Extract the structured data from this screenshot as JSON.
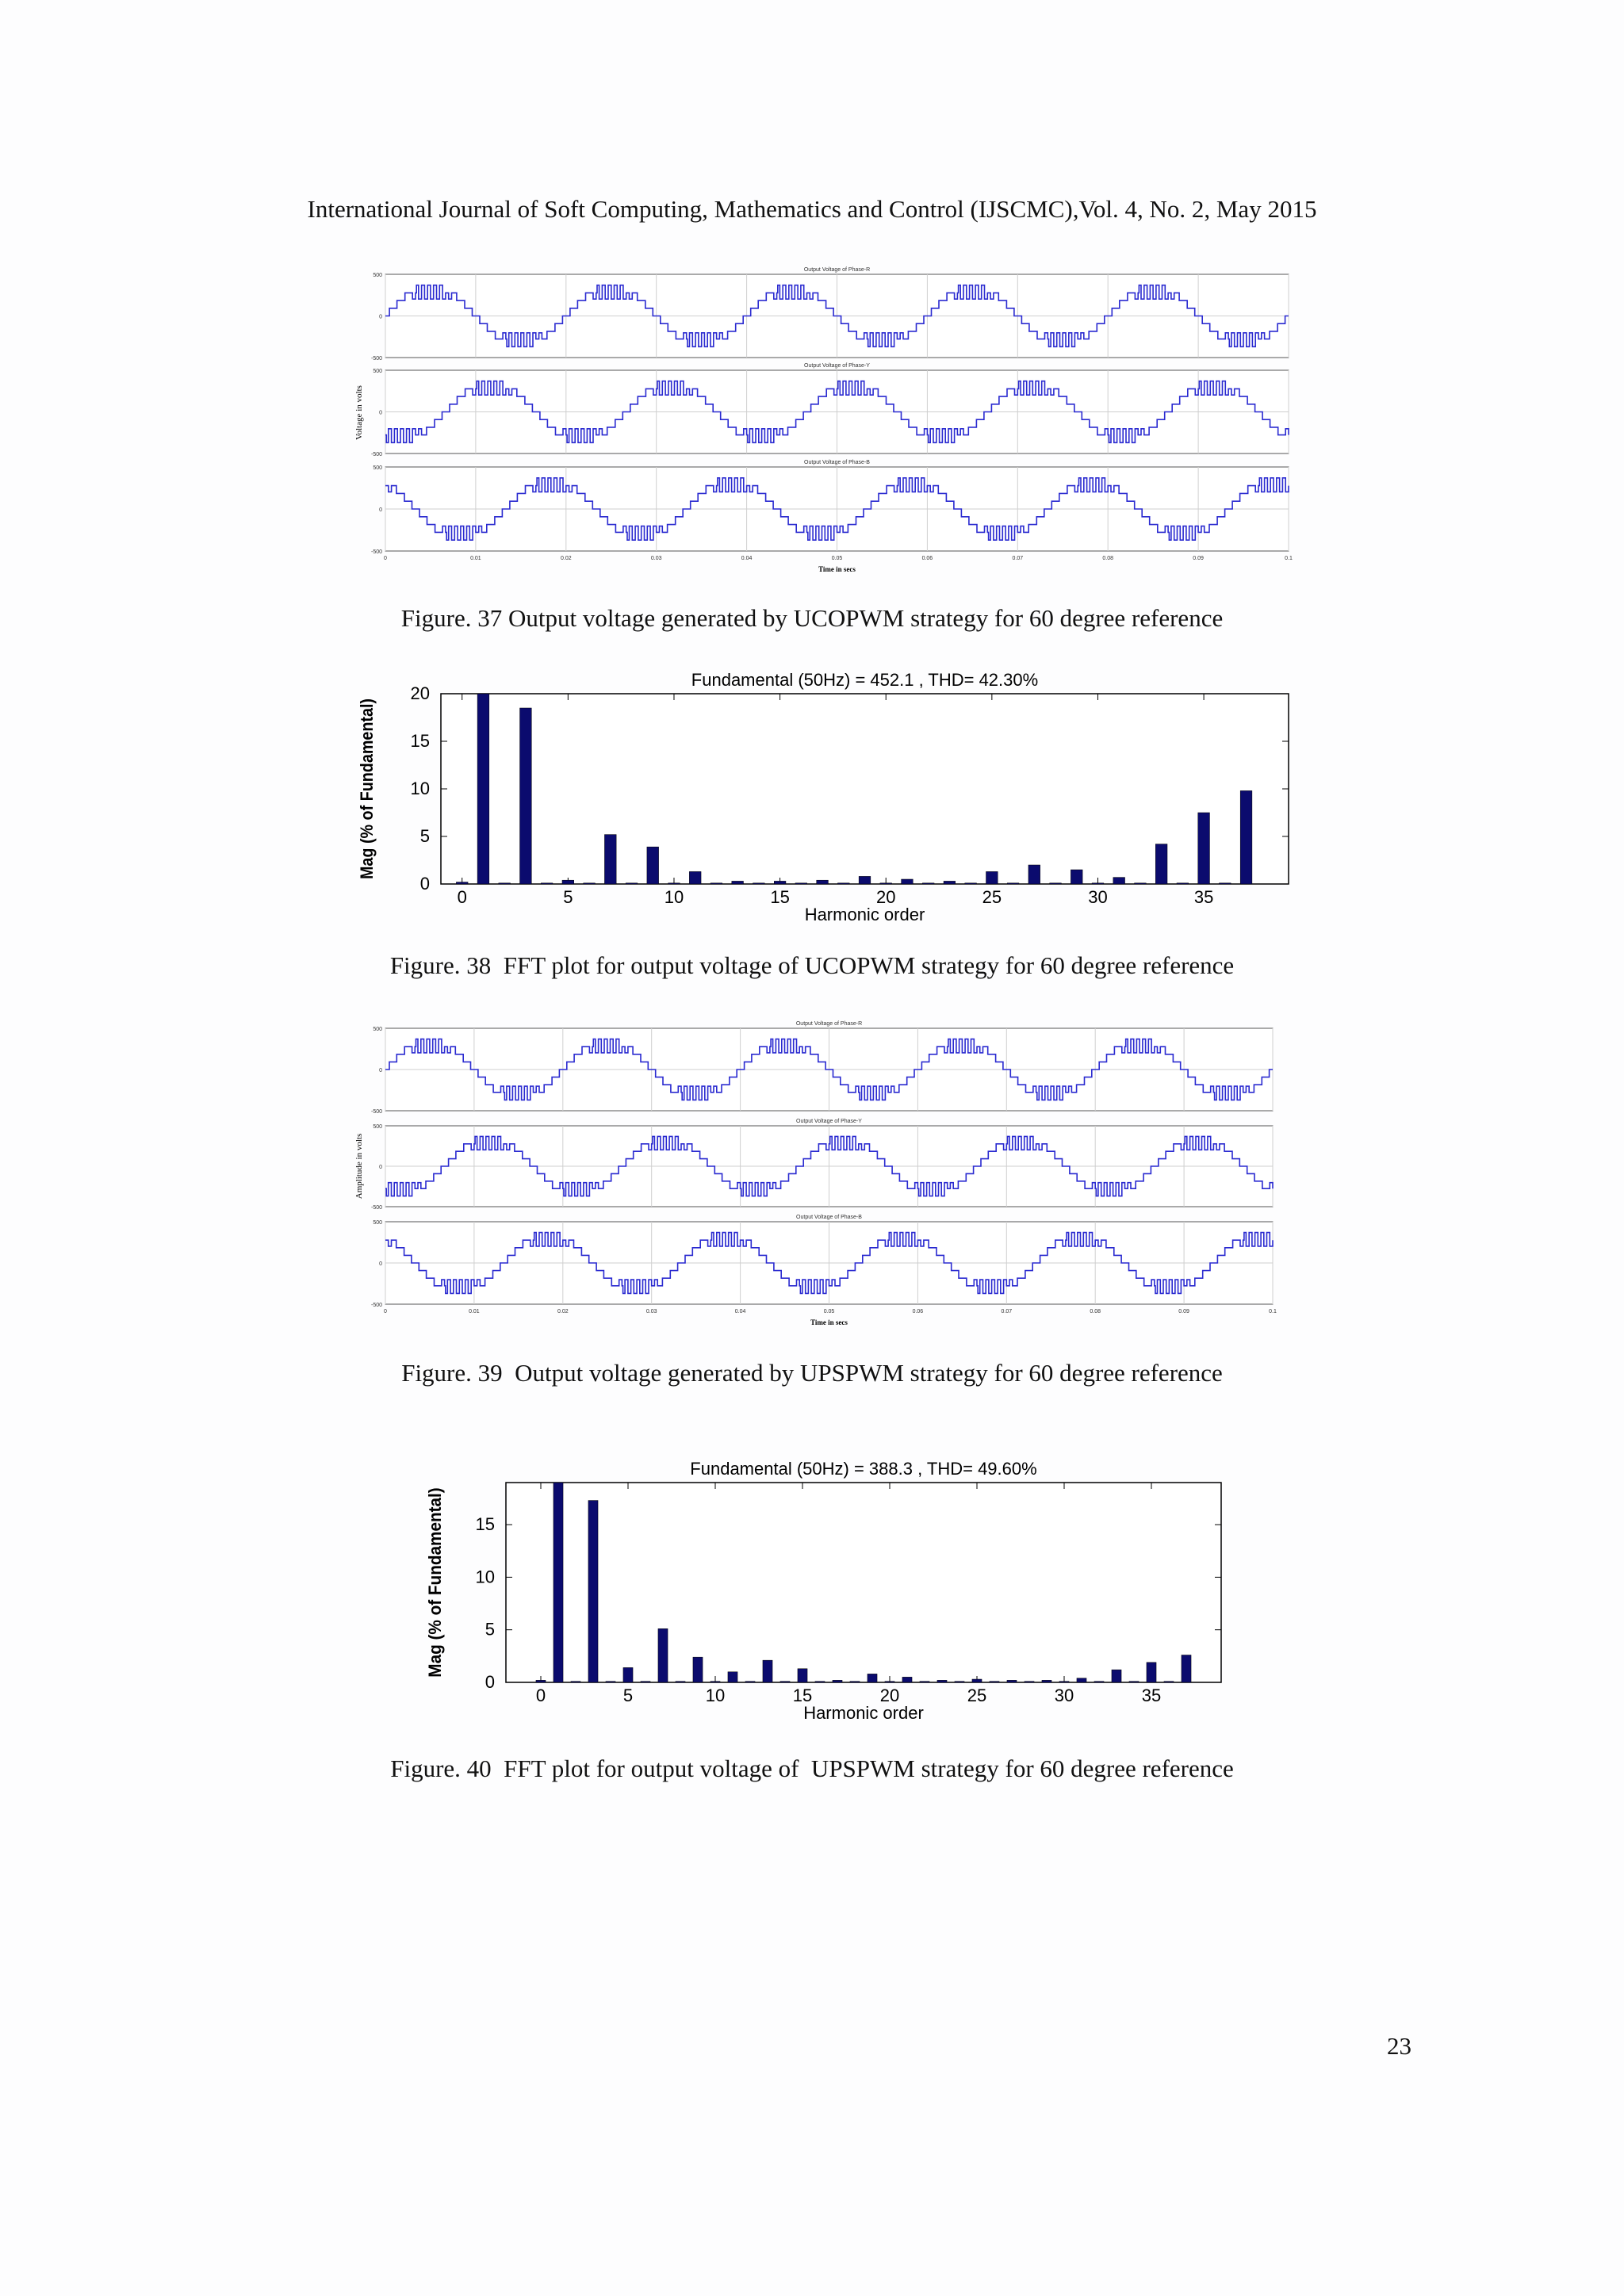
{
  "header": "International Journal of Soft Computing, Mathematics and Control (IJSCMC),Vol. 4, No. 2, May 2015",
  "page_number": "23",
  "captions": {
    "fig37": "Figure. 37 Output voltage generated by UCOPWM strategy for 60 degree reference",
    "fig38": "Figure. 38  FFT plot for output voltage of UCOPWM strategy for 60 degree reference",
    "fig39": "Figure. 39  Output voltage generated by UPSPWM strategy for 60 degree reference",
    "fig40": "Figure. 40  FFT plot for output voltage of  UPSPWM strategy for 60 degree reference"
  },
  "chart_data": [
    {
      "id": "fig37",
      "type": "line",
      "ylabel": "Voltage in volts",
      "xlabel": "Time in secs",
      "xlim": [
        0,
        0.1
      ],
      "xticks": [
        "0",
        "0.01",
        "0.02",
        "0.03",
        "0.04",
        "0.05",
        "0.06",
        "0.07",
        "0.08",
        "0.09",
        "0.1"
      ],
      "color": "#2a2ad0",
      "series": [
        {
          "name": "Output Voltage of Phase-R",
          "phase_deg": 0,
          "ylim": [
            -500,
            500
          ],
          "yticks": [
            "500",
            "0",
            "-500"
          ]
        },
        {
          "name": "Output Voltage of Phase-Y",
          "phase_deg": 120,
          "ylim": [
            -500,
            500
          ],
          "yticks": [
            "500",
            "0",
            "-500"
          ]
        },
        {
          "name": "Output Voltage of Phase-B",
          "phase_deg": 240,
          "ylim": [
            -500,
            500
          ],
          "yticks": [
            "500",
            "0",
            "-500"
          ]
        }
      ],
      "frequency_hz": 50,
      "amplitude": 400
    },
    {
      "id": "fig38",
      "type": "bar",
      "title": "Fundamental (50Hz) = 452.1 , THD= 42.30%",
      "xlabel": "Harmonic order",
      "ylabel": "Mag (% of Fundamental)",
      "xlim": [
        -1,
        39
      ],
      "ylim": [
        0,
        20
      ],
      "xticks": [
        0,
        5,
        10,
        15,
        20,
        25,
        30,
        35
      ],
      "yticks": [
        0,
        5,
        10,
        15,
        20
      ],
      "color": "#0b0b6e",
      "x": [
        0,
        1,
        2,
        3,
        4,
        5,
        6,
        7,
        8,
        9,
        10,
        11,
        12,
        13,
        14,
        15,
        16,
        17,
        18,
        19,
        20,
        21,
        22,
        23,
        24,
        25,
        26,
        27,
        28,
        29,
        30,
        31,
        32,
        33,
        34,
        35,
        36,
        37
      ],
      "values": [
        0.2,
        20,
        0.1,
        18.5,
        0.1,
        0.4,
        0.1,
        5.2,
        0.1,
        3.9,
        0.1,
        1.3,
        0.1,
        0.3,
        0.1,
        0.3,
        0.1,
        0.4,
        0.1,
        0.8,
        0.1,
        0.5,
        0.1,
        0.3,
        0.1,
        1.3,
        0.1,
        2.0,
        0.1,
        1.5,
        0.1,
        0.7,
        0.1,
        4.2,
        0.1,
        7.5,
        0.1,
        9.8
      ]
    },
    {
      "id": "fig39",
      "type": "line",
      "ylabel": "Amplitude in volts",
      "xlabel": "Time in secs",
      "xlim": [
        0,
        0.1
      ],
      "xticks": [
        "0",
        "0.01",
        "0.02",
        "0.03",
        "0.04",
        "0.05",
        "0.06",
        "0.07",
        "0.08",
        "0.09",
        "0.1"
      ],
      "color": "#2a2ad0",
      "series": [
        {
          "name": "Output Voltage of Phase-R",
          "phase_deg": 0,
          "ylim": [
            -500,
            500
          ],
          "yticks": [
            "500",
            "0",
            "-500"
          ]
        },
        {
          "name": "Output Voltage of Phase-Y",
          "phase_deg": 120,
          "ylim": [
            -500,
            500
          ],
          "yticks": [
            "500",
            "0",
            "-500"
          ]
        },
        {
          "name": "Output Voltage of Phase-B",
          "phase_deg": 240,
          "ylim": [
            -500,
            500
          ],
          "yticks": [
            "500",
            "0",
            "-500"
          ]
        }
      ],
      "frequency_hz": 50,
      "amplitude": 400
    },
    {
      "id": "fig40",
      "type": "bar",
      "title": "Fundamental (50Hz) = 388.3 , THD= 49.60%",
      "xlabel": "Harmonic order",
      "ylabel": "Mag (% of Fundamental)",
      "xlim": [
        -2,
        39
      ],
      "ylim": [
        0,
        19
      ],
      "xticks": [
        0,
        5,
        10,
        15,
        20,
        25,
        30,
        35
      ],
      "yticks": [
        0,
        5,
        10,
        15
      ],
      "color": "#0b0b6e",
      "x": [
        0,
        1,
        2,
        3,
        4,
        5,
        6,
        7,
        8,
        9,
        10,
        11,
        12,
        13,
        14,
        15,
        16,
        17,
        18,
        19,
        20,
        21,
        22,
        23,
        24,
        25,
        26,
        27,
        28,
        29,
        30,
        31,
        32,
        33,
        34,
        35,
        36,
        37
      ],
      "values": [
        0.2,
        19,
        0.1,
        17.3,
        0.1,
        1.4,
        0.1,
        5.1,
        0.1,
        2.4,
        0.1,
        1.0,
        0.1,
        2.1,
        0.1,
        1.3,
        0.1,
        0.2,
        0.1,
        0.8,
        0.1,
        0.5,
        0.1,
        0.2,
        0.1,
        0.3,
        0.1,
        0.2,
        0.1,
        0.2,
        0.1,
        0.4,
        0.1,
        1.2,
        0.1,
        1.9,
        0.1,
        2.6
      ]
    }
  ]
}
